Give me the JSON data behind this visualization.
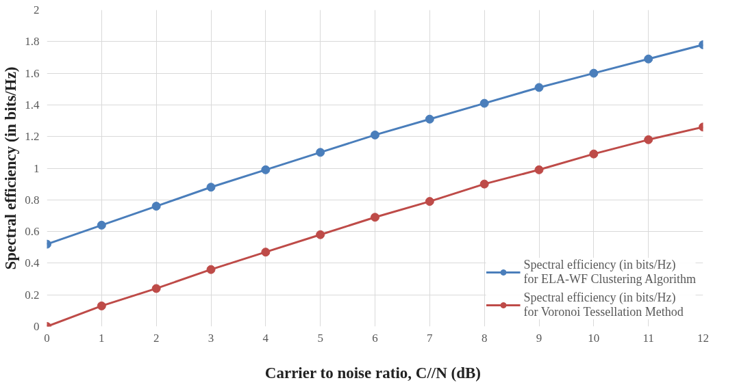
{
  "chart_data": {
    "type": "line",
    "xlabel": "Carrier to noise ratio, C//N  (dB)",
    "ylabel": "Spectral efficiency (in bits/Hz)",
    "x": [
      0,
      1,
      2,
      3,
      4,
      5,
      6,
      7,
      8,
      9,
      10,
      11,
      12
    ],
    "series": [
      {
        "name": "Spectral efficiency (in bits/Hz)  for ELA-WF Clustering Algorithm",
        "color": "#4a7ebb",
        "values": [
          0.52,
          0.64,
          0.76,
          0.88,
          0.99,
          1.1,
          1.21,
          1.31,
          1.41,
          1.51,
          1.6,
          1.69,
          1.78
        ]
      },
      {
        "name": "Spectral efficiency (in bits/Hz)  for Voronoi Tessellation Method",
        "color": "#be4b48",
        "values": [
          0,
          0.13,
          0.24,
          0.36,
          0.47,
          0.58,
          0.69,
          0.79,
          0.9,
          0.99,
          1.09,
          1.18,
          1.26
        ]
      }
    ],
    "xlim": [
      0,
      12
    ],
    "xticks": [
      0,
      1,
      2,
      3,
      4,
      5,
      6,
      7,
      8,
      9,
      10,
      11,
      12
    ],
    "ylim": [
      0,
      2
    ],
    "yticks": [
      0,
      0.2,
      0.4,
      0.6,
      0.8,
      1,
      1.2,
      1.4,
      1.6,
      1.8,
      2
    ],
    "grid": true,
    "legend": "bottom right",
    "marker": "circle",
    "line_style": "solid"
  }
}
